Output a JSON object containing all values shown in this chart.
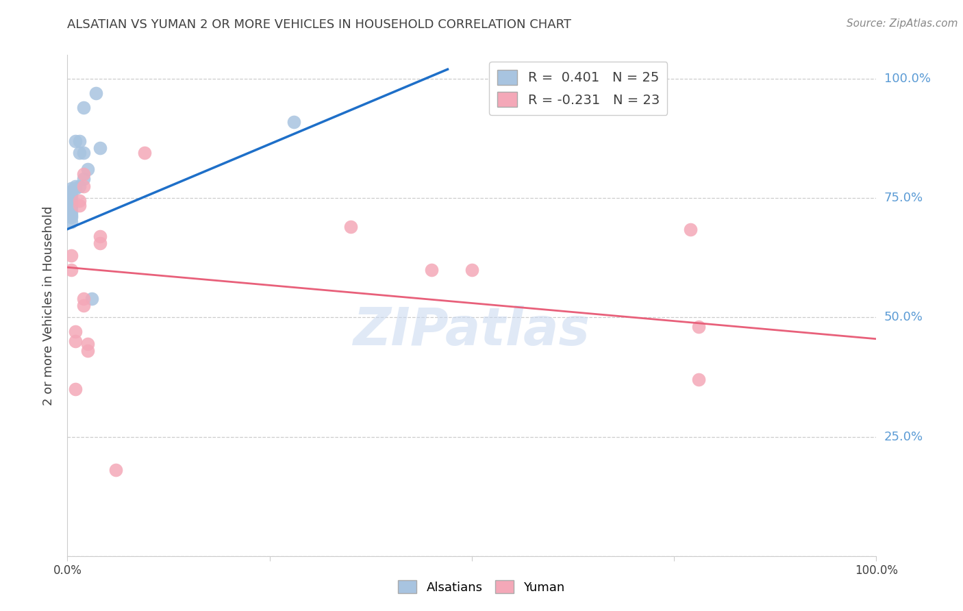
{
  "title": "ALSATIAN VS YUMAN 2 OR MORE VEHICLES IN HOUSEHOLD CORRELATION CHART",
  "source": "Source: ZipAtlas.com",
  "ylabel": "2 or more Vehicles in Household",
  "watermark": "ZIPatlas",
  "xlim": [
    0.0,
    1.0
  ],
  "ylim": [
    0.0,
    1.05
  ],
  "ytick_positions": [
    0.0,
    0.25,
    0.5,
    0.75,
    1.0
  ],
  "ytick_labels": [
    "",
    "25.0%",
    "50.0%",
    "75.0%",
    "100.0%"
  ],
  "legend_alsatian_r": "R =  0.401",
  "legend_alsatian_n": "N = 25",
  "legend_yuman_r": "R = -0.231",
  "legend_yuman_n": "N = 23",
  "alsatian_color": "#a8c4e0",
  "yuman_color": "#f4a8b8",
  "alsatian_line_color": "#1e6fc8",
  "yuman_line_color": "#e8607a",
  "grid_color": "#cccccc",
  "right_label_color": "#5b9bd5",
  "title_color": "#404040",
  "alsatian_x": [
    0.02,
    0.035,
    0.01,
    0.015,
    0.015,
    0.02,
    0.025,
    0.02,
    0.015,
    0.01,
    0.01,
    0.005,
    0.005,
    0.005,
    0.005,
    0.005,
    0.005,
    0.005,
    0.005,
    0.005,
    0.005,
    0.005,
    0.04,
    0.28,
    0.03
  ],
  "alsatian_y": [
    0.94,
    0.97,
    0.87,
    0.87,
    0.845,
    0.845,
    0.81,
    0.79,
    0.775,
    0.775,
    0.77,
    0.77,
    0.765,
    0.755,
    0.745,
    0.74,
    0.735,
    0.73,
    0.72,
    0.715,
    0.71,
    0.7,
    0.855,
    0.91,
    0.54
  ],
  "yuman_x": [
    0.005,
    0.005,
    0.01,
    0.02,
    0.015,
    0.015,
    0.04,
    0.04,
    0.095,
    0.35,
    0.5,
    0.77,
    0.78,
    0.01,
    0.01,
    0.02,
    0.02,
    0.025,
    0.025,
    0.45,
    0.78,
    0.06,
    0.02
  ],
  "yuman_y": [
    0.63,
    0.6,
    0.35,
    0.8,
    0.745,
    0.735,
    0.67,
    0.655,
    0.845,
    0.69,
    0.6,
    0.685,
    0.37,
    0.47,
    0.45,
    0.54,
    0.525,
    0.445,
    0.43,
    0.6,
    0.48,
    0.18,
    0.775
  ],
  "alsatian_trendline_x": [
    0.0,
    0.47
  ],
  "alsatian_trendline_y": [
    0.685,
    1.02
  ],
  "yuman_trendline_x": [
    0.0,
    1.0
  ],
  "yuman_trendline_y": [
    0.605,
    0.455
  ]
}
